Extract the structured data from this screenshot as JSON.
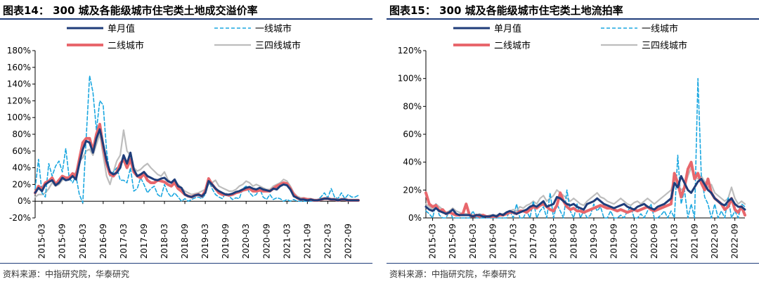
{
  "chart_data": [
    {
      "type": "line",
      "title": "图表14：  300 城及各能级城市住宅类土地成交溢价率",
      "source": "资料来源：中指研究院，华泰研究",
      "ylim": [
        -20,
        180
      ],
      "yticks": [
        "-20%",
        "0%",
        "20%",
        "40%",
        "60%",
        "80%",
        "100%",
        "120%",
        "140%",
        "160%",
        "180%"
      ],
      "xticks": [
        "2015-03",
        "2015-09",
        "2016-03",
        "2016-09",
        "2017-03",
        "2017-09",
        "2018-03",
        "2018-09",
        "2019-03",
        "2019-09",
        "2020-03",
        "2020-09",
        "2021-03",
        "2021-09",
        "2022-03",
        "2022-09"
      ],
      "x": [
        "2015-01",
        "2015-02",
        "2015-03",
        "2015-04",
        "2015-05",
        "2015-06",
        "2015-07",
        "2015-08",
        "2015-09",
        "2015-10",
        "2015-11",
        "2015-12",
        "2016-01",
        "2016-02",
        "2016-03",
        "2016-04",
        "2016-05",
        "2016-06",
        "2016-07",
        "2016-08",
        "2016-09",
        "2016-10",
        "2016-11",
        "2016-12",
        "2017-01",
        "2017-02",
        "2017-03",
        "2017-04",
        "2017-05",
        "2017-06",
        "2017-07",
        "2017-08",
        "2017-09",
        "2017-10",
        "2017-11",
        "2017-12",
        "2018-01",
        "2018-02",
        "2018-03",
        "2018-04",
        "2018-05",
        "2018-06",
        "2018-07",
        "2018-08",
        "2018-09",
        "2018-10",
        "2018-11",
        "2018-12",
        "2019-01",
        "2019-02",
        "2019-03",
        "2019-04",
        "2019-05",
        "2019-06",
        "2019-07",
        "2019-08",
        "2019-09",
        "2019-10",
        "2019-11",
        "2019-12",
        "2020-01",
        "2020-02",
        "2020-03",
        "2020-04",
        "2020-05",
        "2020-06",
        "2020-07",
        "2020-08",
        "2020-09",
        "2020-10",
        "2020-11",
        "2020-12",
        "2021-01",
        "2021-02",
        "2021-03",
        "2021-04",
        "2021-05",
        "2021-06",
        "2021-07",
        "2021-08",
        "2021-09",
        "2021-10",
        "2021-11",
        "2021-12",
        "2022-01",
        "2022-02",
        "2022-03",
        "2022-04",
        "2022-05",
        "2022-06",
        "2022-07",
        "2022-08",
        "2022-09",
        "2022-10",
        "2022-11",
        "2022-12"
      ],
      "series": [
        {
          "name": "单月值",
          "color": "#1f3d7a",
          "width": 3,
          "dash": "",
          "values": [
            10,
            16,
            12,
            20,
            23,
            25,
            19,
            22,
            28,
            25,
            26,
            30,
            26,
            45,
            62,
            72,
            70,
            58,
            75,
            86,
            68,
            48,
            35,
            32,
            34,
            40,
            55,
            45,
            58,
            38,
            30,
            32,
            35,
            30,
            28,
            26,
            25,
            27,
            28,
            24,
            22,
            26,
            18,
            16,
            8,
            6,
            5,
            7,
            8,
            6,
            10,
            24,
            20,
            15,
            12,
            10,
            8,
            8,
            9,
            11,
            12,
            14,
            16,
            17,
            15,
            14,
            16,
            14,
            13,
            12,
            15,
            14,
            18,
            20,
            19,
            14,
            6,
            4,
            2,
            2,
            1,
            2,
            1,
            1,
            2,
            3,
            3,
            2,
            2,
            1,
            2,
            2,
            1,
            1,
            1,
            1
          ]
        },
        {
          "name": "一线城市",
          "color": "#1aa7e0",
          "width": 1.6,
          "dash": "5,3",
          "values": [
            15,
            50,
            10,
            5,
            45,
            30,
            42,
            48,
            35,
            63,
            28,
            22,
            30,
            8,
            -2,
            75,
            150,
            130,
            85,
            120,
            115,
            60,
            30,
            35,
            40,
            25,
            25,
            22,
            40,
            12,
            15,
            28,
            20,
            10,
            15,
            18,
            8,
            5,
            20,
            10,
            5,
            10,
            5,
            0,
            3,
            0,
            2,
            4,
            5,
            3,
            8,
            25,
            15,
            8,
            5,
            3,
            10,
            6,
            2,
            4,
            3,
            15,
            18,
            10,
            6,
            8,
            15,
            5,
            2,
            8,
            2,
            4,
            3,
            0,
            2,
            0,
            2,
            0,
            0,
            0,
            0,
            0,
            0,
            2,
            5,
            10,
            4,
            15,
            5,
            3,
            10,
            3,
            8,
            5,
            5,
            7
          ]
        },
        {
          "name": "二线城市",
          "color": "#e8676c",
          "width": 4,
          "dash": "",
          "values": [
            10,
            18,
            14,
            22,
            24,
            28,
            20,
            25,
            30,
            28,
            28,
            33,
            30,
            50,
            70,
            75,
            75,
            60,
            80,
            92,
            65,
            45,
            32,
            30,
            35,
            45,
            50,
            40,
            50,
            35,
            30,
            28,
            33,
            25,
            22,
            22,
            25,
            24,
            23,
            20,
            18,
            22,
            15,
            12,
            8,
            6,
            5,
            7,
            8,
            6,
            12,
            27,
            20,
            15,
            10,
            8,
            8,
            7,
            8,
            10,
            11,
            13,
            14,
            15,
            12,
            12,
            13,
            12,
            12,
            12,
            15,
            18,
            20,
            22,
            21,
            15,
            8,
            4,
            2,
            3,
            2,
            2,
            1,
            1,
            2,
            3,
            3,
            2,
            2,
            1,
            2,
            2,
            1,
            1,
            1,
            1
          ]
        },
        {
          "name": "三四线城市",
          "color": "#bdbdbd",
          "width": 2.2,
          "dash": "",
          "values": [
            5,
            8,
            8,
            10,
            15,
            22,
            18,
            20,
            25,
            28,
            26,
            30,
            35,
            48,
            52,
            60,
            62,
            55,
            68,
            80,
            55,
            30,
            20,
            35,
            48,
            55,
            85,
            60,
            55,
            40,
            36,
            38,
            42,
            45,
            40,
            36,
            32,
            30,
            35,
            26,
            22,
            24,
            20,
            16,
            12,
            10,
            8,
            9,
            10,
            12,
            14,
            20,
            22,
            25,
            18,
            16,
            14,
            12,
            12,
            14,
            18,
            20,
            24,
            22,
            18,
            20,
            18,
            16,
            14,
            14,
            18,
            20,
            22,
            26,
            24,
            18,
            10,
            6,
            4,
            4,
            3,
            3,
            2,
            2,
            3,
            4,
            4,
            3,
            3,
            2,
            3,
            3,
            2,
            2,
            2,
            2
          ]
        }
      ]
    },
    {
      "type": "line",
      "title": "图表15：  300 城及各能级城市住宅类土地流拍率",
      "source": "资料来源：中指研究院，华泰研究",
      "ylim": [
        0,
        120
      ],
      "yticks": [
        "0%",
        "20%",
        "40%",
        "60%",
        "80%",
        "100%",
        "120%"
      ],
      "xticks": [
        "2015-03",
        "2015-09",
        "2016-03",
        "2016-09",
        "2017-03",
        "2017-09",
        "2018-03",
        "2018-09",
        "2019-03",
        "2019-09",
        "2020-03",
        "2020-09",
        "2021-03",
        "2021-09",
        "2022-03",
        "2022-09"
      ],
      "x": [
        "2015-01",
        "2015-02",
        "2015-03",
        "2015-04",
        "2015-05",
        "2015-06",
        "2015-07",
        "2015-08",
        "2015-09",
        "2015-10",
        "2015-11",
        "2015-12",
        "2016-01",
        "2016-02",
        "2016-03",
        "2016-04",
        "2016-05",
        "2016-06",
        "2016-07",
        "2016-08",
        "2016-09",
        "2016-10",
        "2016-11",
        "2016-12",
        "2017-01",
        "2017-02",
        "2017-03",
        "2017-04",
        "2017-05",
        "2017-06",
        "2017-07",
        "2017-08",
        "2017-09",
        "2017-10",
        "2017-11",
        "2017-12",
        "2018-01",
        "2018-02",
        "2018-03",
        "2018-04",
        "2018-05",
        "2018-06",
        "2018-07",
        "2018-08",
        "2018-09",
        "2018-10",
        "2018-11",
        "2018-12",
        "2019-01",
        "2019-02",
        "2019-03",
        "2019-04",
        "2019-05",
        "2019-06",
        "2019-07",
        "2019-08",
        "2019-09",
        "2019-10",
        "2019-11",
        "2019-12",
        "2020-01",
        "2020-02",
        "2020-03",
        "2020-04",
        "2020-05",
        "2020-06",
        "2020-07",
        "2020-08",
        "2020-09",
        "2020-10",
        "2020-11",
        "2020-12",
        "2021-01",
        "2021-02",
        "2021-03",
        "2021-04",
        "2021-05",
        "2021-06",
        "2021-07",
        "2021-08",
        "2021-09",
        "2021-10",
        "2021-11",
        "2021-12",
        "2022-01",
        "2022-02",
        "2022-03",
        "2022-04",
        "2022-05",
        "2022-06",
        "2022-07",
        "2022-08",
        "2022-09",
        "2022-10",
        "2022-11",
        "2022-12"
      ],
      "series": [
        {
          "name": "单月值",
          "color": "#1f3d7a",
          "width": 3,
          "dash": "",
          "values": [
            8,
            6,
            5,
            7,
            5,
            4,
            3,
            4,
            6,
            3,
            2,
            2,
            2,
            2,
            1,
            2,
            2,
            1,
            1,
            1,
            2,
            1,
            3,
            2,
            4,
            5,
            4,
            3,
            4,
            5,
            6,
            8,
            9,
            8,
            10,
            12,
            8,
            9,
            10,
            15,
            14,
            12,
            10,
            9,
            10,
            8,
            7,
            6,
            10,
            11,
            12,
            14,
            12,
            10,
            9,
            8,
            7,
            8,
            9,
            10,
            8,
            7,
            6,
            8,
            9,
            10,
            8,
            7,
            6,
            8,
            9,
            10,
            12,
            14,
            25,
            22,
            30,
            25,
            20,
            18,
            22,
            26,
            28,
            24,
            20,
            18,
            14,
            12,
            10,
            9,
            12,
            14,
            10,
            8,
            8,
            6
          ]
        },
        {
          "name": "一线城市",
          "color": "#1aa7e0",
          "width": 1.6,
          "dash": "5,3",
          "values": [
            5,
            3,
            0,
            10,
            2,
            0,
            0,
            5,
            0,
            0,
            0,
            0,
            0,
            0,
            5,
            0,
            0,
            0,
            0,
            0,
            0,
            0,
            0,
            0,
            0,
            5,
            0,
            10,
            0,
            0,
            5,
            0,
            12,
            0,
            5,
            8,
            0,
            18,
            0,
            10,
            5,
            0,
            20,
            5,
            0,
            10,
            0,
            5,
            0,
            2,
            10,
            5,
            8,
            0,
            0,
            5,
            0,
            0,
            2,
            0,
            5,
            8,
            0,
            0,
            3,
            0,
            5,
            10,
            0,
            0,
            2,
            5,
            0,
            5,
            0,
            45,
            10,
            20,
            0,
            10,
            0,
            100,
            30,
            15,
            10,
            0,
            10,
            0,
            5,
            0,
            15,
            0,
            5,
            0,
            10,
            8
          ]
        },
        {
          "name": "二线城市",
          "color": "#e8676c",
          "width": 4,
          "dash": "",
          "values": [
            18,
            10,
            8,
            9,
            5,
            6,
            3,
            4,
            3,
            2,
            2,
            3,
            10,
            2,
            1,
            2,
            1,
            2,
            1,
            1,
            1,
            1,
            2,
            2,
            3,
            4,
            4,
            3,
            5,
            5,
            4,
            6,
            8,
            7,
            9,
            10,
            8,
            6,
            5,
            9,
            18,
            12,
            8,
            6,
            7,
            5,
            5,
            4,
            5,
            6,
            7,
            8,
            9,
            8,
            7,
            7,
            6,
            5,
            6,
            5,
            4,
            5,
            6,
            5,
            6,
            7,
            8,
            6,
            5,
            6,
            7,
            8,
            9,
            10,
            32,
            25,
            15,
            22,
            35,
            40,
            28,
            32,
            25,
            20,
            28,
            18,
            14,
            12,
            10,
            6,
            8,
            14,
            6,
            4,
            8,
            2
          ]
        },
        {
          "name": "三四线城市",
          "color": "#bdbdbd",
          "width": 2.2,
          "dash": "",
          "values": [
            10,
            8,
            6,
            10,
            8,
            6,
            4,
            5,
            7,
            5,
            4,
            3,
            3,
            3,
            2,
            2,
            3,
            2,
            1,
            2,
            2,
            2,
            2,
            3,
            4,
            5,
            6,
            5,
            8,
            7,
            9,
            10,
            12,
            10,
            14,
            16,
            12,
            14,
            16,
            20,
            18,
            16,
            14,
            12,
            14,
            12,
            10,
            9,
            12,
            14,
            16,
            18,
            15,
            14,
            12,
            11,
            10,
            12,
            14,
            12,
            10,
            9,
            11,
            12,
            10,
            12,
            14,
            12,
            10,
            12,
            14,
            16,
            18,
            20,
            28,
            24,
            20,
            22,
            30,
            36,
            30,
            28,
            30,
            26,
            22,
            24,
            18,
            16,
            14,
            12,
            14,
            22,
            14,
            10,
            12,
            10
          ]
        }
      ]
    }
  ]
}
